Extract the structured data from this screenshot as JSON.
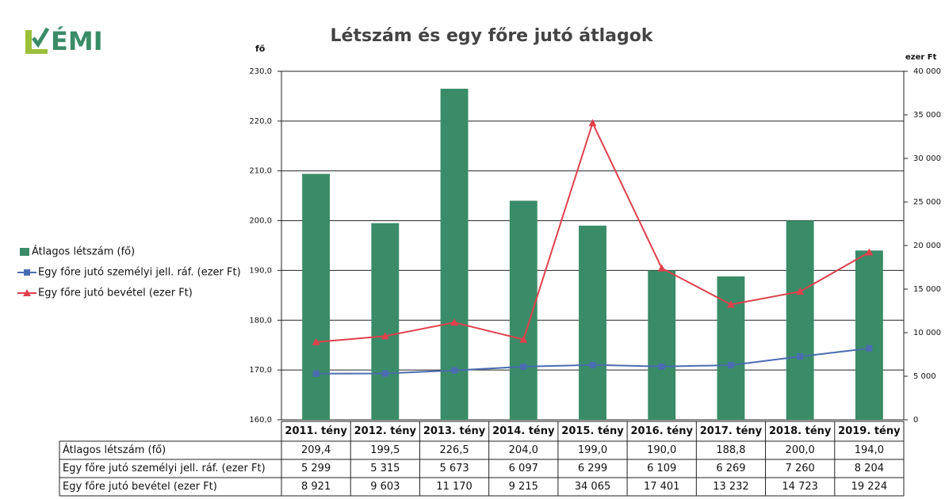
{
  "chart_data": {
    "type": "bar-line",
    "title": "Létszám és egy főre jutó átlagok",
    "logo": "ÉMI",
    "ylabel": "fő",
    "y2label": "ezer Ft",
    "categories": [
      "2011. tény",
      "2012. tény",
      "2013. tény",
      "2014. tény",
      "2015. tény",
      "2016. tény",
      "2017. tény",
      "2018. tény",
      "2019. tény"
    ],
    "series": [
      {
        "name": "Átlagos létszám (fő)",
        "type": "bar",
        "axis": "y",
        "color": "#3a8c68",
        "values": [
          209.4,
          199.5,
          226.5,
          204.0,
          199.0,
          190.0,
          188.8,
          200.0,
          194.0
        ],
        "value_labels": [
          "209,4",
          "199,5",
          "226,5",
          "204,0",
          "199,0",
          "190,0",
          "188,8",
          "200,0",
          "194,0"
        ]
      },
      {
        "name": "Egy főre jutó személyi jell. ráf. (ezer Ft)",
        "type": "line",
        "axis": "y2",
        "color": "#4a6cb0",
        "values": [
          5299,
          5315,
          5673,
          6097,
          6299,
          6109,
          6269,
          7260,
          8204
        ],
        "value_labels": [
          "5 299",
          "5 315",
          "5 673",
          "6 097",
          "6 299",
          "6 109",
          "6 269",
          "7 260",
          "8 204"
        ]
      },
      {
        "name": "Egy főre jutó bevétel (ezer Ft)",
        "type": "line",
        "axis": "y2",
        "color": "#e0404c",
        "values": [
          8921,
          9603,
          11170,
          9215,
          34065,
          17401,
          13232,
          14723,
          19224
        ],
        "value_labels": [
          "8 921",
          "9 603",
          "11 170",
          "9 215",
          "34 065",
          "17 401",
          "13 232",
          "14 723",
          "19 224"
        ]
      }
    ],
    "ylim": [
      160,
      230
    ],
    "yticks": [
      {
        "value": 160,
        "label": "160,0"
      },
      {
        "value": 170,
        "label": "170,0"
      },
      {
        "value": 180,
        "label": "180,0"
      },
      {
        "value": 190,
        "label": "190,0"
      },
      {
        "value": 200,
        "label": "200,0"
      },
      {
        "value": 210,
        "label": "210,0"
      },
      {
        "value": 220,
        "label": "220,0"
      },
      {
        "value": 230,
        "label": "230,0"
      }
    ],
    "y2lim": [
      0,
      40000
    ],
    "y2ticks": [
      0,
      {
        "value": 5000,
        "label": "5 000"
      },
      {
        "value": 10000,
        "label": "10 000"
      },
      {
        "value": 15000,
        "label": "15 000"
      },
      {
        "value": 20000,
        "label": "20 000"
      },
      {
        "value": 25000,
        "label": "25 000"
      },
      {
        "value": 30000,
        "label": "30 000"
      },
      {
        "value": 35000,
        "label": "35 000"
      },
      {
        "value": 40000,
        "label": "40 000"
      }
    ],
    "grid": true,
    "legend": "left"
  }
}
